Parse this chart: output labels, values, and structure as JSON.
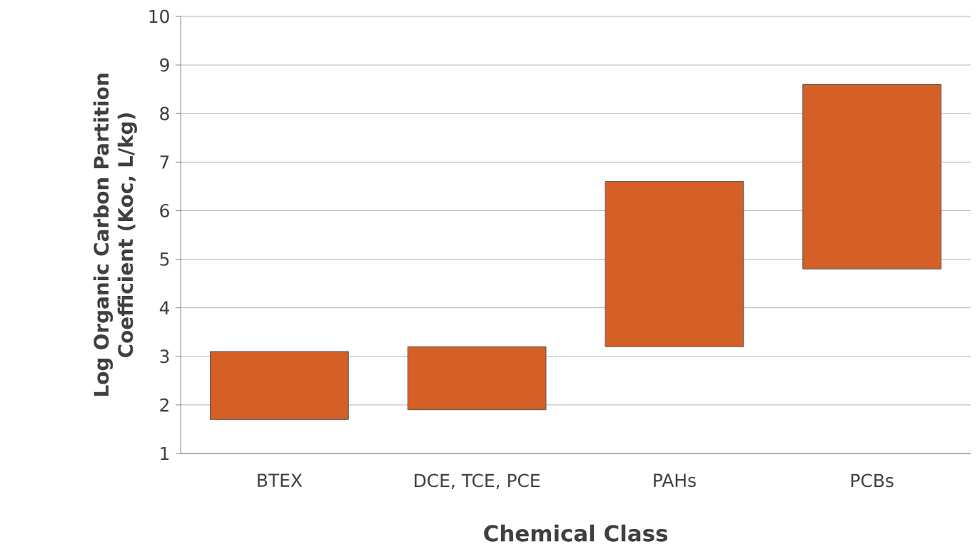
{
  "chart_data": {
    "type": "bar",
    "xlabel": "Chemical Class",
    "ylabel": "Log Organic Carbon Partition Coefficient (Koc, L/kg)",
    "categories": [
      "BTEX",
      "DCE, TCE, PCE",
      "PAHs",
      "PCBs"
    ],
    "base": [
      1.7,
      1.9,
      3.2,
      4.8
    ],
    "values": [
      1.4,
      1.3,
      3.4,
      3.8
    ],
    "color": "#d45f27",
    "ylim": [
      1,
      10
    ],
    "yticks": [
      1,
      2,
      3,
      4,
      5,
      6,
      7,
      8,
      9,
      10
    ],
    "grid": "y"
  }
}
